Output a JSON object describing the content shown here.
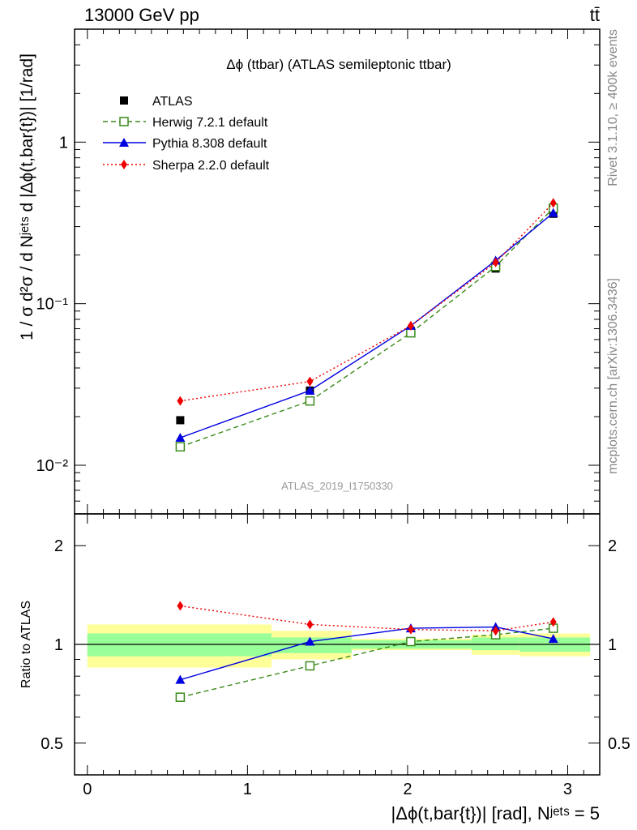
{
  "header": {
    "left": "13000 GeV pp",
    "right": "tt̄"
  },
  "side_labels": {
    "rivet": "Rivet 3.1.10, ≥ 400k events",
    "mcplots": "mcplots.cern.ch [arXiv:1306.3436]"
  },
  "analysis_id": "ATLAS_2019_I1750330",
  "colors": {
    "atlas": "#000000",
    "herwig": "#3a8a1a",
    "pythia": "#0000e0",
    "sherpa": "#ee0000",
    "band_inner": "#99ff99",
    "band_outer": "#ffff99"
  },
  "chart_data": [
    {
      "type": "line",
      "title": "Δϕ (ttbar) (ATLAS semileptonic ttbar)",
      "ylabel": "1 / σ d²σ / d Nʲᵉᵗˢ d |Δϕ(t,bar{t})| [1/rad]",
      "y_scale": "log",
      "ylim": [
        0.005,
        5
      ],
      "xlim": [
        -0.08,
        3.2
      ],
      "y_ticks": [
        "10⁻²",
        "10⁻¹",
        "1"
      ],
      "x": [
        0.58,
        1.39,
        2.02,
        2.55,
        2.91
      ],
      "series": [
        {
          "name": "ATLAS",
          "marker": "square",
          "values": [
            0.019,
            0.029,
            0.068,
            0.165,
            0.36
          ]
        },
        {
          "name": "Herwig 7.2.1 default",
          "marker": "open-square",
          "style": "dashed",
          "values": [
            0.013,
            0.025,
            0.066,
            0.17,
            0.39
          ]
        },
        {
          "name": "Pythia 8.308 default",
          "marker": "triangle",
          "style": "solid",
          "values": [
            0.0148,
            0.029,
            0.073,
            0.185,
            0.365
          ]
        },
        {
          "name": "Sherpa 2.2.0 default",
          "marker": "diamond",
          "style": "dotted",
          "values": [
            0.025,
            0.033,
            0.073,
            0.18,
            0.42
          ]
        }
      ]
    },
    {
      "type": "line",
      "ylabel": "Ratio to ATLAS",
      "xlabel": "|Δϕ(t,bar{t})| [rad], Nʲᵉᵗˢ = 5",
      "y_scale": "log",
      "ylim": [
        0.4,
        2.5
      ],
      "xlim": [
        -0.08,
        3.2
      ],
      "y_ticks": [
        "0.5",
        "1",
        "2"
      ],
      "x_ticks": [
        "0",
        "1",
        "2",
        "3"
      ],
      "x": [
        0.58,
        1.39,
        2.02,
        2.55,
        2.91
      ],
      "series": [
        {
          "name": "Herwig 7.2.1 default",
          "values": [
            0.69,
            0.86,
            1.02,
            1.07,
            1.12
          ]
        },
        {
          "name": "Pythia 8.308 default",
          "values": [
            0.78,
            1.02,
            1.12,
            1.13,
            1.04
          ]
        },
        {
          "name": "Sherpa 2.2.0 default",
          "values": [
            1.31,
            1.15,
            1.11,
            1.1,
            1.17
          ]
        }
      ],
      "uncertainty_bands": {
        "bin_edges": [
          0.0,
          1.15,
          1.65,
          2.4,
          2.7,
          3.14
        ],
        "inner": [
          [
            0.92,
            1.08
          ],
          [
            0.94,
            1.05
          ],
          [
            0.97,
            1.03
          ],
          [
            0.96,
            1.05
          ],
          [
            0.95,
            1.05
          ]
        ],
        "outer": [
          [
            0.85,
            1.15
          ],
          [
            0.9,
            1.1
          ],
          [
            0.96,
            1.04
          ],
          [
            0.93,
            1.07
          ],
          [
            0.92,
            1.08
          ]
        ]
      }
    }
  ]
}
